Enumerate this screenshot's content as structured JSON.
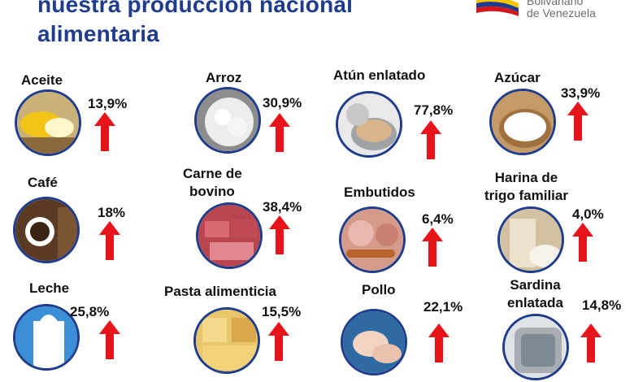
{
  "header": {
    "title_line1": "nuestra producción nacional",
    "title_line2": "alimentaria",
    "logo_line1": "Bolivariano",
    "logo_line2": "de Venezuela"
  },
  "items": [
    {
      "label": "Aceite",
      "value": "13,9%"
    },
    {
      "label": "Arroz",
      "value": "30,9%"
    },
    {
      "label": "Atún enlatado",
      "value": "77,8%"
    },
    {
      "label": "Azúcar",
      "value": "33,9%"
    },
    {
      "label": "Café",
      "value": "18%"
    },
    {
      "label_line1": "Carne de",
      "label_line2": "bovino",
      "value": "38,4%"
    },
    {
      "label": "Embutidos",
      "value": "6,4%"
    },
    {
      "label_line1": "Harina de",
      "label_line2": "trigo familiar",
      "value": "4,0%"
    },
    {
      "label": "Leche",
      "value": "25,8%"
    },
    {
      "label": "Pasta alimenticia",
      "value": "15,5%"
    },
    {
      "label": "Pollo",
      "value": "22,1%"
    },
    {
      "label_line1": "Sardina",
      "label_line2": "enlatada",
      "value": "14,8%"
    }
  ],
  "colors": {
    "title": "#1f3d8c",
    "arrow": "#e8141b",
    "ring": "#1f3d8c"
  }
}
